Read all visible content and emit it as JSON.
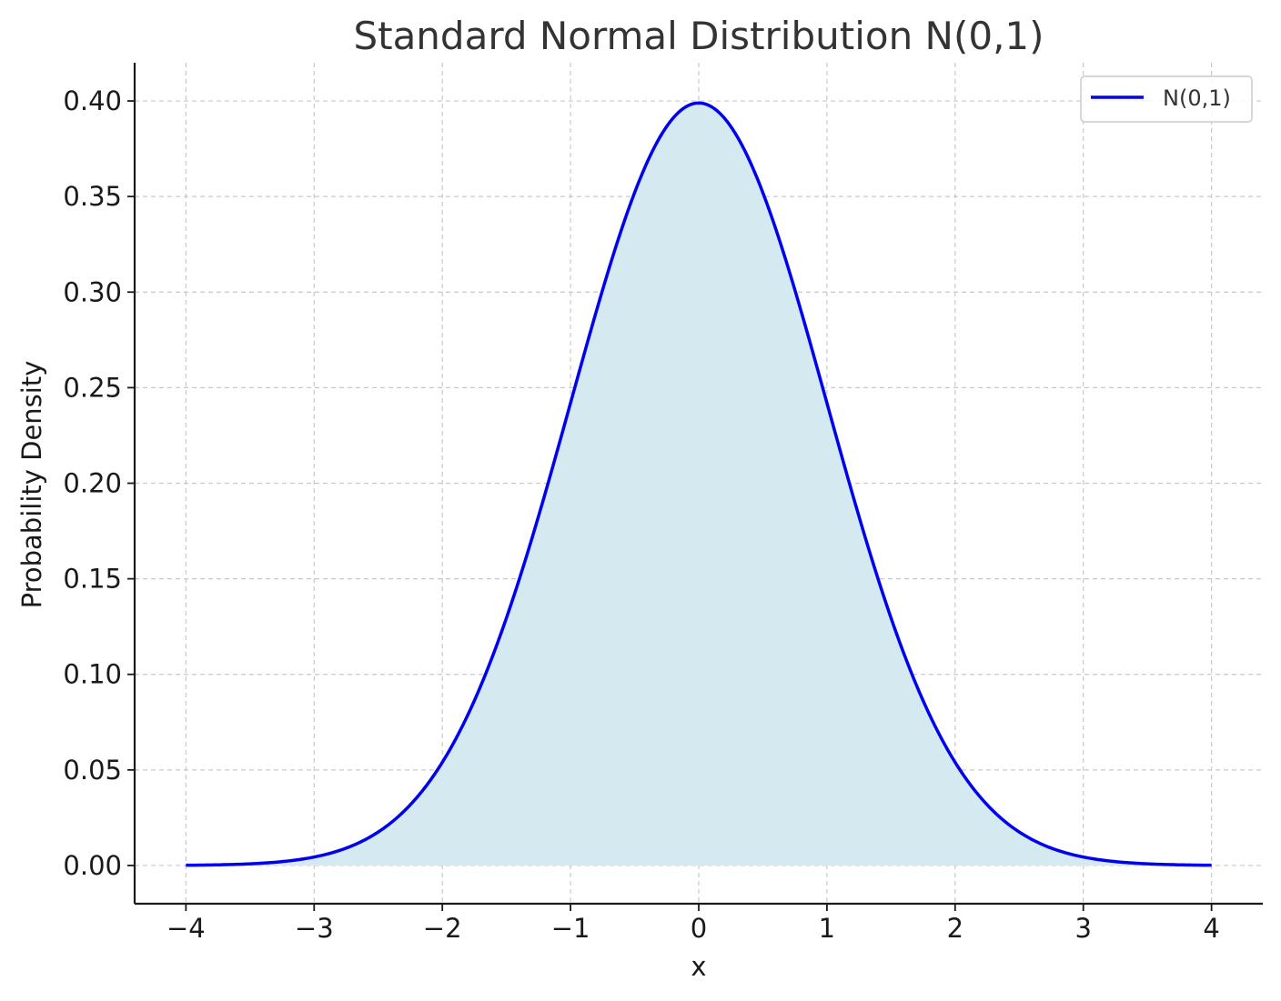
{
  "chart_data": {
    "type": "area",
    "title": "Standard Normal Distribution N(0,1)",
    "xlabel": "x",
    "ylabel": "Probability Density",
    "xlim": [
      -4.4,
      4.4
    ],
    "ylim": [
      -0.02,
      0.42
    ],
    "x_ticks": [
      -4,
      -3,
      -2,
      -1,
      0,
      1,
      2,
      3,
      4
    ],
    "x_tick_labels": [
      "−4",
      "−3",
      "−2",
      "−1",
      "0",
      "1",
      "2",
      "3",
      "4"
    ],
    "y_ticks": [
      0.0,
      0.05,
      0.1,
      0.15,
      0.2,
      0.25,
      0.3,
      0.35,
      0.4
    ],
    "y_tick_labels": [
      "0.00",
      "0.05",
      "0.10",
      "0.15",
      "0.20",
      "0.25",
      "0.30",
      "0.35",
      "0.40"
    ],
    "grid": true,
    "legend_position": "top-right",
    "series": [
      {
        "name": "N(0,1)",
        "color": "#0000ee",
        "fill_color": "#d4eaf0",
        "x": [
          -4,
          -3.75,
          -3.5,
          -3.25,
          -3,
          -2.75,
          -2.5,
          -2.25,
          -2,
          -1.75,
          -1.5,
          -1.25,
          -1,
          -0.75,
          -0.5,
          -0.25,
          0,
          0.25,
          0.5,
          0.75,
          1,
          1.25,
          1.5,
          1.75,
          2,
          2.25,
          2.5,
          2.75,
          3,
          3.25,
          3.5,
          3.75,
          4
        ],
        "y": [
          0.0001,
          0.0004,
          0.0009,
          0.002,
          0.0044,
          0.0091,
          0.0175,
          0.0317,
          0.054,
          0.0863,
          0.1295,
          0.1826,
          0.242,
          0.3011,
          0.3521,
          0.3867,
          0.3989,
          0.3867,
          0.3521,
          0.3011,
          0.242,
          0.1826,
          0.1295,
          0.0863,
          0.054,
          0.0317,
          0.0175,
          0.0091,
          0.0044,
          0.002,
          0.0009,
          0.0004,
          0.0001
        ]
      }
    ]
  }
}
